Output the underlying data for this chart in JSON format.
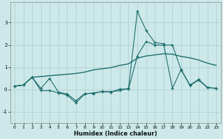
{
  "xlabel": "Humidex (Indice chaleur)",
  "background_color": "#cce8e8",
  "grid_color": "#aacccc",
  "line_color": "#1a6b6b",
  "xlim": [
    -0.5,
    23.5
  ],
  "ylim": [
    -1.5,
    3.9
  ],
  "yticks": [
    -1,
    0,
    1,
    2,
    3
  ],
  "xticks": [
    0,
    1,
    2,
    3,
    4,
    5,
    6,
    7,
    8,
    9,
    10,
    11,
    12,
    13,
    14,
    15,
    16,
    17,
    18,
    19,
    20,
    21,
    22,
    23
  ],
  "line_spike_x": [
    0,
    1,
    2,
    3,
    4,
    5,
    6,
    7,
    8,
    9,
    10,
    11,
    12,
    13,
    14,
    15,
    16,
    17,
    18,
    19,
    20,
    21,
    22,
    23
  ],
  "line_spike_y": [
    0.15,
    0.2,
    0.55,
    -0.05,
    -0.05,
    -0.15,
    -0.25,
    -0.6,
    -0.2,
    -0.15,
    -0.1,
    -0.1,
    -0.05,
    0.05,
    3.5,
    2.65,
    2.1,
    2.05,
    0.05,
    0.9,
    0.2,
    0.45,
    0.1,
    0.05
  ],
  "line_trend_x": [
    0,
    1,
    2,
    3,
    4,
    5,
    6,
    7,
    8,
    9,
    10,
    11,
    12,
    13,
    14,
    15,
    16,
    17,
    18,
    19,
    20,
    21,
    22,
    23
  ],
  "line_trend_y": [
    0.15,
    0.2,
    0.55,
    0.58,
    0.62,
    0.65,
    0.68,
    0.72,
    0.78,
    0.88,
    0.93,
    0.98,
    1.08,
    1.15,
    1.4,
    1.5,
    1.55,
    1.6,
    1.58,
    1.48,
    1.42,
    1.32,
    1.18,
    1.08
  ],
  "line_lower_x": [
    0,
    1,
    2,
    3,
    4,
    5,
    6,
    7,
    8,
    9,
    10,
    11,
    12,
    13,
    14,
    15,
    16,
    17,
    18,
    19,
    20,
    21,
    22,
    23
  ],
  "line_lower_y": [
    0.15,
    0.2,
    0.55,
    0.05,
    0.5,
    -0.12,
    -0.2,
    -0.5,
    -0.18,
    -0.18,
    -0.08,
    -0.12,
    0.02,
    0.02,
    1.5,
    2.15,
    2.0,
    1.98,
    2.0,
    0.88,
    0.18,
    0.42,
    0.08,
    0.05
  ]
}
